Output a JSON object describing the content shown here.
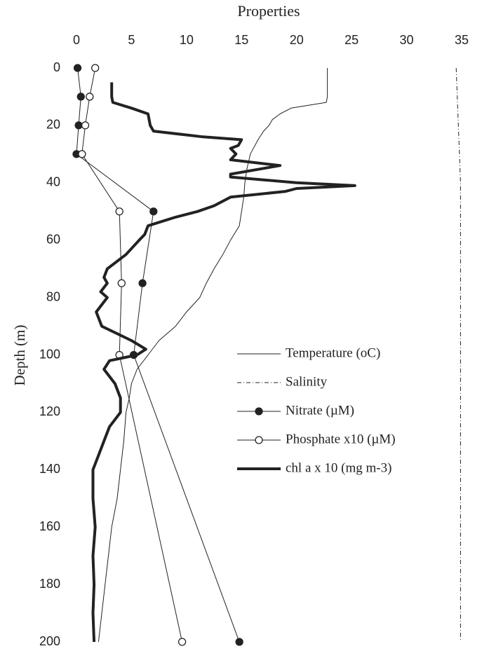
{
  "chart_data": {
    "type": "line",
    "title": "Properties",
    "y_label": "Depth (m)",
    "xlim": [
      0,
      35
    ],
    "xticks": [
      0,
      5,
      10,
      15,
      20,
      25,
      30,
      35
    ],
    "x_axis_position": "top",
    "ylim": [
      0,
      200
    ],
    "yticks": [
      0,
      20,
      40,
      60,
      80,
      100,
      120,
      140,
      160,
      180,
      200
    ],
    "y_reversed": true,
    "grid": false,
    "legend": "center-right",
    "series": [
      {
        "name": "Temperature (oC)",
        "color": "#222222",
        "width": 1,
        "dash": "none",
        "marker": "none",
        "depth": [
          0,
          5,
          10,
          12,
          14,
          16,
          18,
          20,
          22,
          25,
          30,
          35,
          40,
          45,
          50,
          55,
          60,
          65,
          70,
          75,
          80,
          85,
          90,
          95,
          100,
          105,
          110,
          115,
          120,
          130,
          140,
          150,
          160,
          170,
          180,
          190,
          200
        ],
        "values": [
          22.8,
          22.8,
          22.8,
          22.7,
          19.5,
          18.5,
          17.8,
          17.5,
          17,
          16.5,
          15.8,
          15.5,
          15.3,
          15.2,
          15,
          14.8,
          14,
          13.3,
          12.5,
          11.8,
          11.2,
          10,
          9,
          7.5,
          6.5,
          5.5,
          5,
          4.8,
          4.5,
          4.3,
          4,
          3.7,
          3.2,
          2.9,
          2.6,
          2.3,
          2.0
        ]
      },
      {
        "name": "Salinity",
        "color": "#222222",
        "width": 1,
        "dash": "6 3 1 3",
        "marker": "none",
        "depth": [
          0,
          20,
          40,
          60,
          100,
          150,
          200
        ],
        "values": [
          34.5,
          34.7,
          34.9,
          34.9,
          34.9,
          34.9,
          34.9
        ]
      },
      {
        "name": "Nitrate (µM)",
        "color": "#222222",
        "width": 1,
        "dash": "none",
        "marker": "filled",
        "depth": [
          0,
          10,
          20,
          30,
          50,
          75,
          100,
          200
        ],
        "values": [
          0.1,
          0.4,
          0.2,
          0,
          7,
          6,
          5.2,
          14.8
        ]
      },
      {
        "name": "Phosphate x10 (µM)",
        "color": "#222222",
        "width": 1,
        "dash": "none",
        "marker": "open",
        "depth": [
          0,
          10,
          20,
          30,
          50,
          75,
          100,
          200
        ],
        "values": [
          1.7,
          1.2,
          0.8,
          0.5,
          3.9,
          4.1,
          3.9,
          9.6
        ]
      },
      {
        "name": "chl a x 10 (mg m-3)",
        "color": "#222222",
        "width": 4,
        "dash": "none",
        "marker": "none",
        "depth": [
          5,
          10,
          12,
          14,
          16,
          20,
          22,
          24,
          25,
          27,
          28,
          30,
          32,
          34,
          35,
          37,
          38,
          40,
          41,
          42,
          43,
          45,
          48,
          50,
          52,
          55,
          58,
          60,
          65,
          70,
          73,
          75,
          78,
          80,
          85,
          90,
          95,
          98,
          100,
          102,
          105,
          110,
          115,
          120,
          125,
          130,
          135,
          140,
          150,
          160,
          170,
          180,
          190,
          200
        ],
        "values": [
          3.2,
          3.2,
          3.3,
          5,
          6.5,
          6.7,
          7,
          11.5,
          15,
          14.7,
          14,
          14.5,
          14,
          18.5,
          17,
          14,
          14,
          20,
          25.3,
          20,
          19,
          14,
          12.5,
          11,
          9,
          6.5,
          6.2,
          5.7,
          4.5,
          2.8,
          2.5,
          2.8,
          2.2,
          2.8,
          1.8,
          2.3,
          5,
          6.3,
          5.5,
          3,
          2.5,
          3.5,
          4,
          4,
          3,
          2.5,
          2,
          1.5,
          1.5,
          1.7,
          1.5,
          1.6,
          1.5,
          1.6
        ]
      }
    ]
  }
}
